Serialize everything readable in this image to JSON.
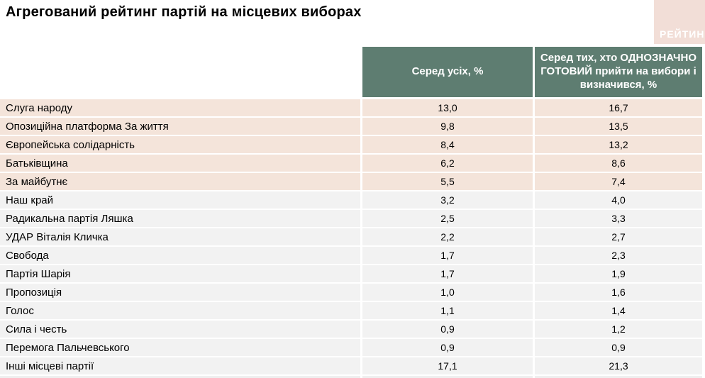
{
  "title": "Агрегований рейтинг партій на місцевих виборах",
  "logo": {
    "text": "РЕЙТИНГ"
  },
  "colors": {
    "header_green": "#5e7d71",
    "row_pink": "#f4e4da",
    "row_gray": "#f2f2f2",
    "logo_bg": "#f2ded7",
    "logo_text": "#ffffff"
  },
  "chart_data": {
    "type": "table",
    "title": "Агрегований рейтинг партій на місцевих виборах",
    "columns": [
      "",
      "Серед усіх, %",
      "Серед тих, хто ОДНОЗНАЧНО ГОТОВИЙ прийти на вибори і визначився, %"
    ],
    "legend_note": "перші п'ять рядків виділені рожевим",
    "rows": [
      {
        "party": "Слуга народу",
        "all": "13,0",
        "ready": "16,7",
        "highlighted": true
      },
      {
        "party": "Опозиційна платформа За життя",
        "all": "9,8",
        "ready": "13,5",
        "highlighted": true
      },
      {
        "party": "Європейська солідарність",
        "all": "8,4",
        "ready": "13,2",
        "highlighted": true
      },
      {
        "party": "Батьківщина",
        "all": "6,2",
        "ready": "8,6",
        "highlighted": true
      },
      {
        "party": "За майбутнє",
        "all": "5,5",
        "ready": "7,4",
        "highlighted": true
      },
      {
        "party": "Наш край",
        "all": "3,2",
        "ready": "4,0",
        "highlighted": false
      },
      {
        "party": "Радикальна партія Ляшка",
        "all": "2,5",
        "ready": "3,3",
        "highlighted": false
      },
      {
        "party": "УДАР Віталія Кличка",
        "all": "2,2",
        "ready": "2,7",
        "highlighted": false
      },
      {
        "party": "Свобода",
        "all": "1,7",
        "ready": "2,3",
        "highlighted": false
      },
      {
        "party": "Партія Шарія",
        "all": "1,7",
        "ready": "1,9",
        "highlighted": false
      },
      {
        "party": "Пропозиція",
        "all": "1,0",
        "ready": "1,6",
        "highlighted": false
      },
      {
        "party": "Голос",
        "all": "1,1",
        "ready": "1,4",
        "highlighted": false
      },
      {
        "party": "Сила і честь",
        "all": "0,9",
        "ready": "1,2",
        "highlighted": false
      },
      {
        "party": "Перемога Пальчевського",
        "all": "0,9",
        "ready": "0,9",
        "highlighted": false
      },
      {
        "party": "Інші місцеві партії",
        "all": "17,1",
        "ready": "21,3",
        "highlighted": false
      }
    ]
  }
}
